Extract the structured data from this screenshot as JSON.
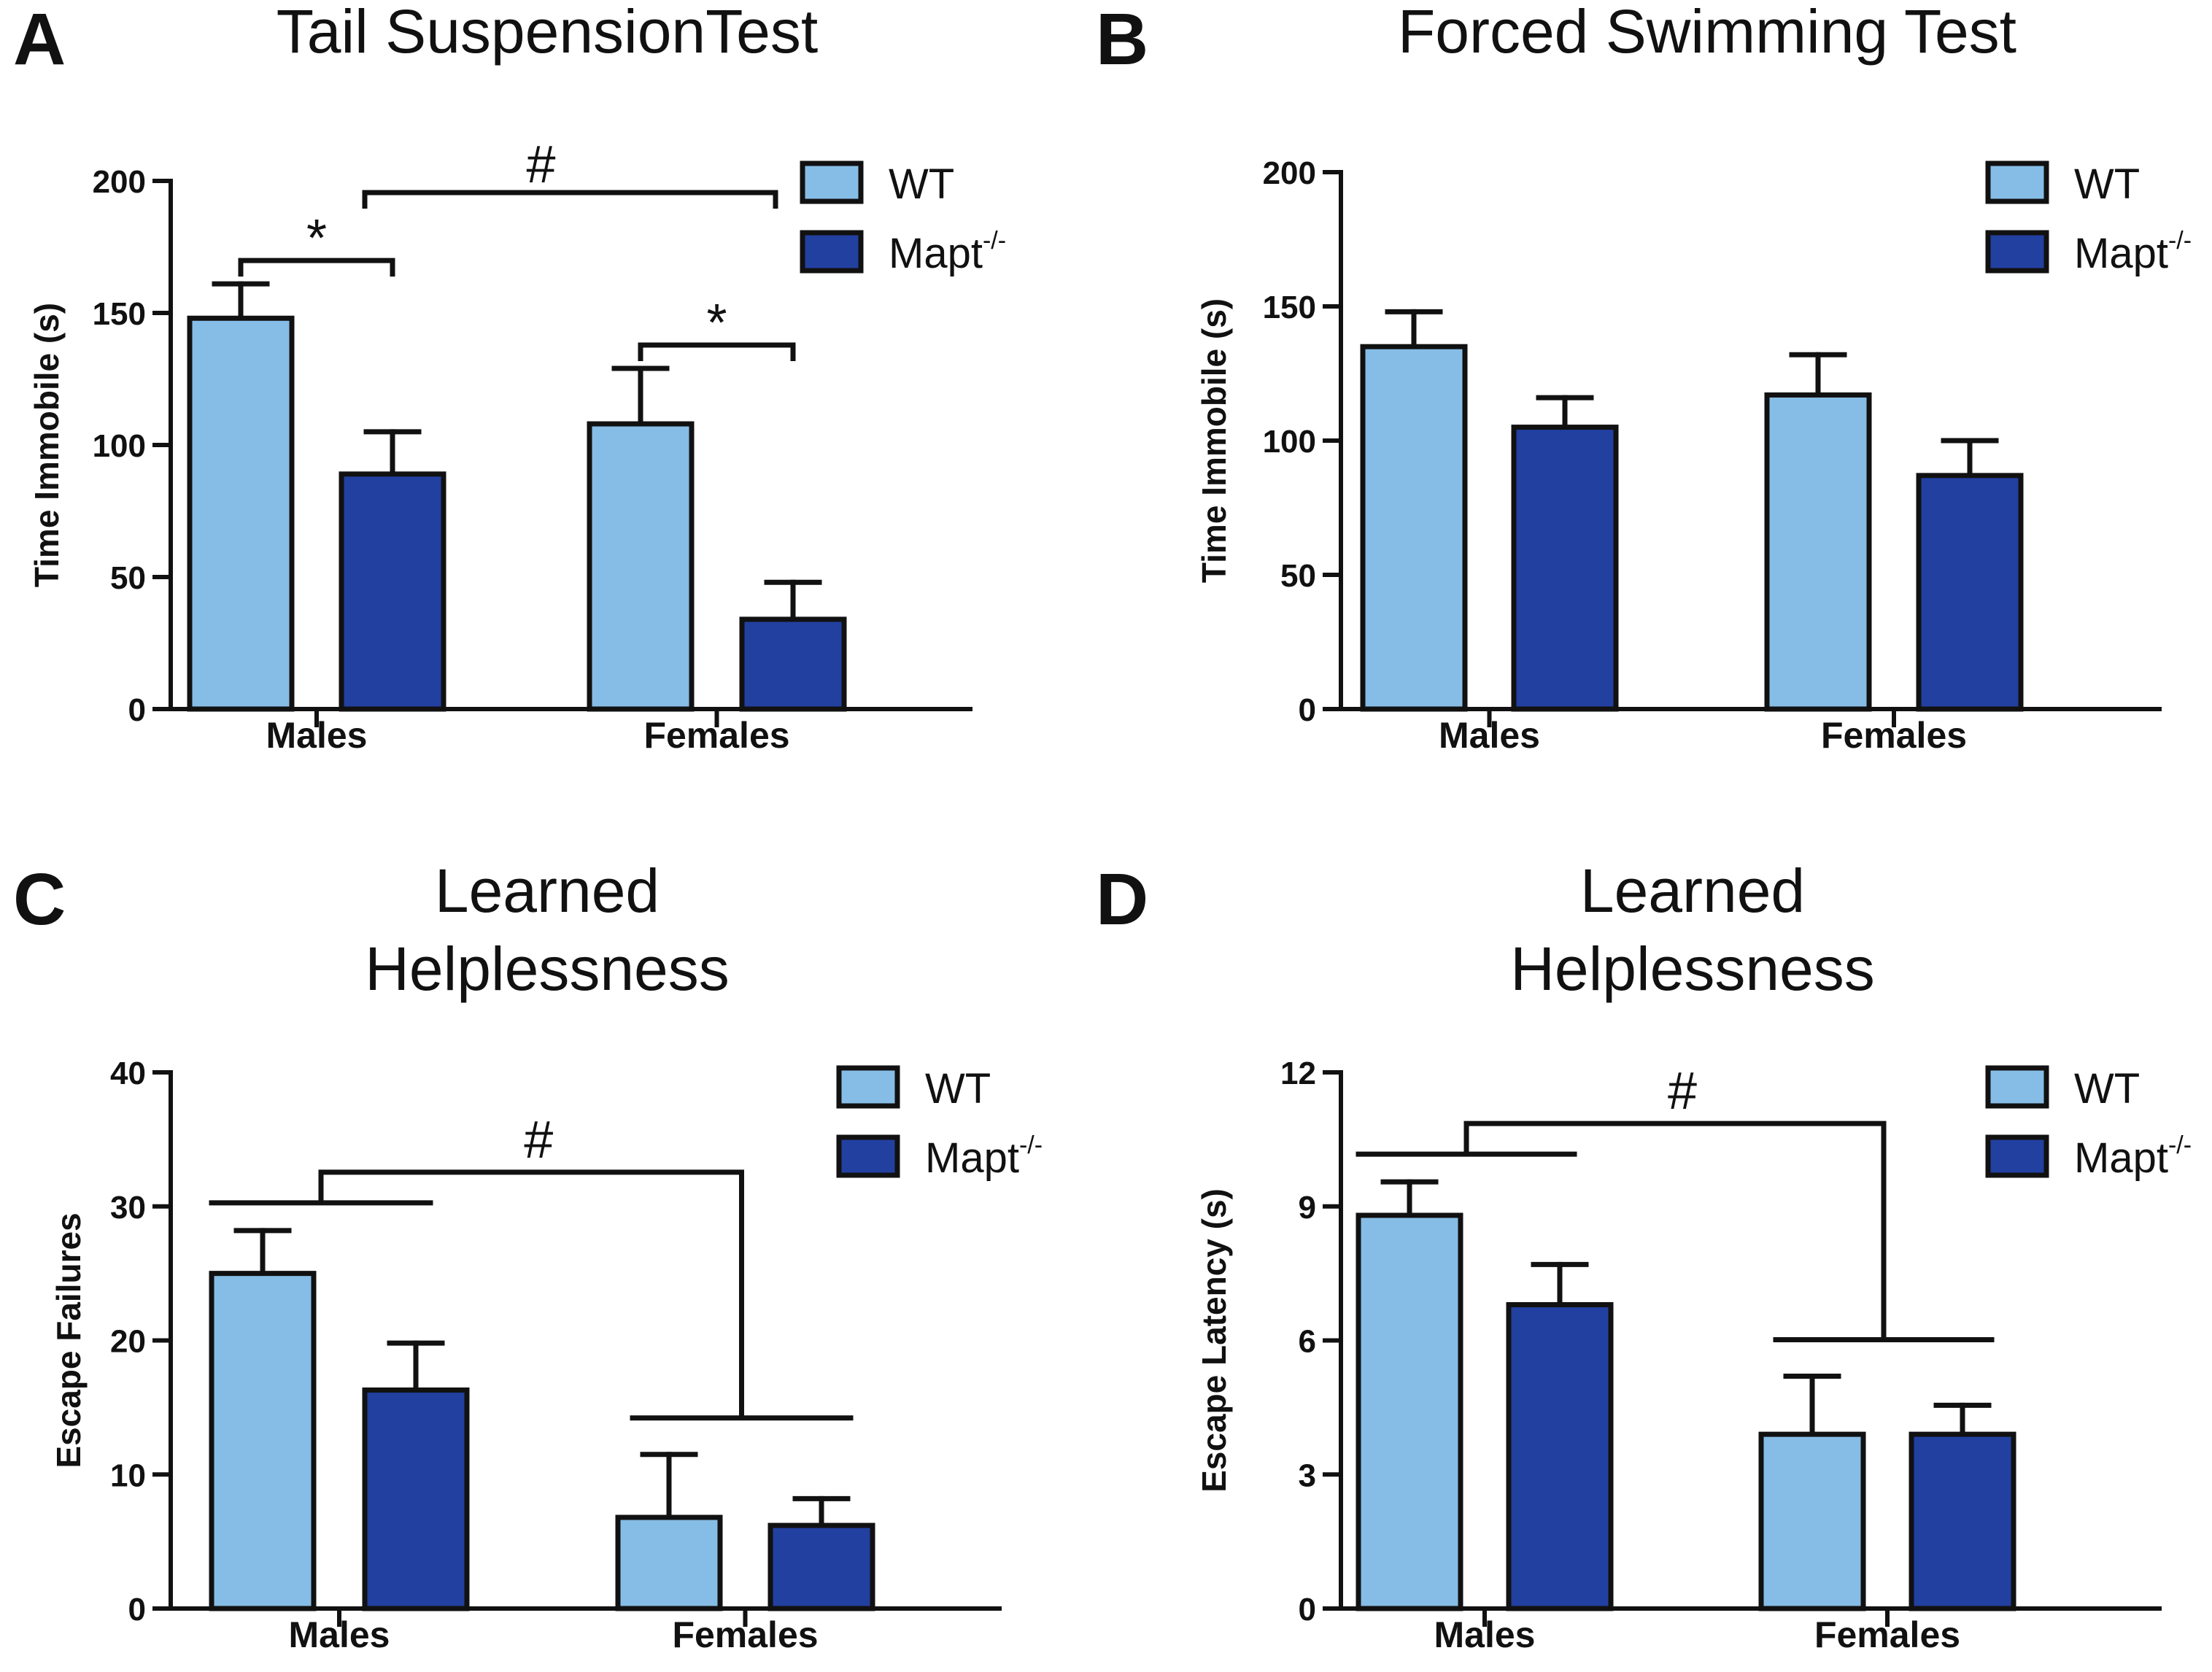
{
  "colors": {
    "wt": "#86bde6",
    "ko": "#22409f",
    "stroke": "#111111"
  },
  "legend": {
    "wt": "WT",
    "ko_base": "Mapt",
    "ko_sup": "-/-"
  },
  "chart_data": [
    {
      "id": "A",
      "type": "bar",
      "panel_label": "A",
      "title_lines": [
        "Tail SuspensionTest"
      ],
      "ylabel": "Time Immobile (s)",
      "ylim": [
        0,
        200
      ],
      "yticks": [
        0,
        50,
        100,
        150,
        200
      ],
      "categories": [
        "Males",
        "Females"
      ],
      "series": [
        {
          "name": "WT",
          "values": [
            148,
            108
          ],
          "errors": [
            13,
            21
          ]
        },
        {
          "name": "Mapt-/-",
          "values": [
            89,
            34
          ],
          "errors": [
            16,
            14
          ]
        }
      ],
      "annotations": [
        {
          "text": "#",
          "kind": "between_wt_bars"
        },
        {
          "text": "*",
          "kind": "within_males"
        },
        {
          "text": "*",
          "kind": "within_females"
        }
      ]
    },
    {
      "id": "B",
      "type": "bar",
      "panel_label": "B",
      "title_lines": [
        "Forced Swimming Test"
      ],
      "ylabel": "Time Immobile (s)",
      "ylim": [
        0,
        200
      ],
      "yticks": [
        0,
        50,
        100,
        150,
        200
      ],
      "categories": [
        "Males",
        "Females"
      ],
      "series": [
        {
          "name": "WT",
          "values": [
            135,
            117
          ],
          "errors": [
            13,
            15
          ]
        },
        {
          "name": "Mapt-/-",
          "values": [
            105,
            87
          ],
          "errors": [
            11,
            13
          ]
        }
      ],
      "annotations": []
    },
    {
      "id": "C",
      "type": "bar",
      "panel_label": "C",
      "title_lines": [
        "Learned",
        "Helplessness"
      ],
      "ylabel": "Escape Failures",
      "ylim": [
        0,
        40
      ],
      "yticks": [
        0,
        10,
        20,
        30,
        40
      ],
      "categories": [
        "Males",
        "Females"
      ],
      "series": [
        {
          "name": "WT",
          "values": [
            25,
            6.8
          ],
          "errors": [
            3.2,
            4.7
          ]
        },
        {
          "name": "Mapt-/-",
          "values": [
            16.3,
            6.2
          ],
          "errors": [
            3.5,
            2
          ]
        }
      ],
      "annotations": [
        {
          "text": "#",
          "kind": "males_vs_females"
        }
      ]
    },
    {
      "id": "D",
      "type": "bar",
      "panel_label": "D",
      "title_lines": [
        "Learned",
        "Helplessness"
      ],
      "ylabel": "Escape Latency (s)",
      "ylim": [
        0,
        12
      ],
      "yticks": [
        0,
        3,
        6,
        9,
        12
      ],
      "categories": [
        "Males",
        "Females"
      ],
      "series": [
        {
          "name": "WT",
          "values": [
            8.8,
            3.9
          ],
          "errors": [
            0.75,
            1.3
          ]
        },
        {
          "name": "Mapt-/-",
          "values": [
            6.8,
            3.9
          ],
          "errors": [
            0.9,
            0.65
          ]
        }
      ],
      "annotations": [
        {
          "text": "#",
          "kind": "males_vs_females"
        }
      ]
    }
  ]
}
